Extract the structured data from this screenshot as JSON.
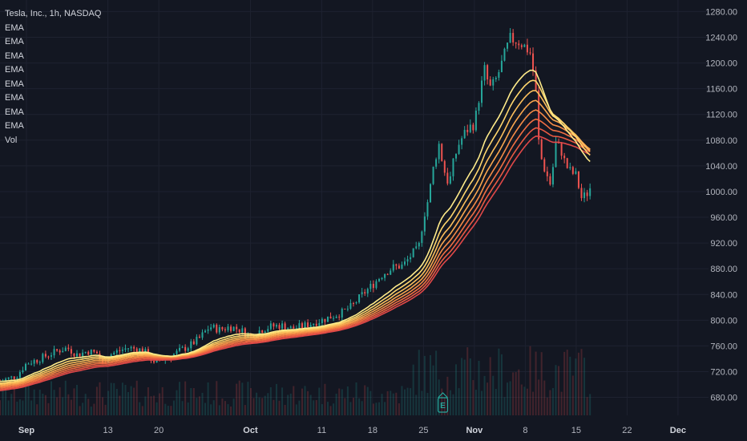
{
  "header": {
    "symbol_title": "Tesla, Inc., 1h, NASDAQ",
    "indicators": [
      "EMA",
      "EMA",
      "EMA",
      "EMA",
      "EMA",
      "EMA",
      "EMA",
      "EMA",
      "Vol"
    ]
  },
  "colors": {
    "background": "#131722",
    "grid": "#1e2230",
    "up": "#26a69a",
    "down": "#ef5350",
    "ema_ribbon": [
      "#ffeb8a",
      "#ffd76e",
      "#fcbf5c",
      "#f9a64f",
      "#f58b47",
      "#f06f43",
      "#e85a43",
      "#e04848"
    ],
    "earnings_marker": "#26a69a"
  },
  "earnings_marker": {
    "label": "E"
  },
  "chart_data": {
    "type": "candlestick",
    "title": "Tesla, Inc., 1h, NASDAQ",
    "price_axis": {
      "ticks": [
        680,
        720,
        760,
        800,
        840,
        880,
        920,
        960,
        1000,
        1040,
        1080,
        1120,
        1160,
        1200,
        1240,
        1280
      ],
      "tick_labels": [
        "680.00",
        "720.00",
        "760.00",
        "800.00",
        "840.00",
        "880.00",
        "920.00",
        "960.00",
        "1000.00",
        "1040.00",
        "1080.00",
        "1120.00",
        "1160.00",
        "1200.00",
        "1240.00",
        "1280.00"
      ],
      "ylim": [
        652,
        1298
      ]
    },
    "time_axis": {
      "labels": [
        {
          "text": "Sep",
          "bold": true,
          "t": 0
        },
        {
          "text": "13",
          "bold": false,
          "t": 8
        },
        {
          "text": "20",
          "bold": false,
          "t": 13
        },
        {
          "text": "Oct",
          "bold": true,
          "t": 22
        },
        {
          "text": "11",
          "bold": false,
          "t": 29
        },
        {
          "text": "18",
          "bold": false,
          "t": 34
        },
        {
          "text": "25",
          "bold": false,
          "t": 39
        },
        {
          "text": "Nov",
          "bold": true,
          "t": 44
        },
        {
          "text": "8",
          "bold": false,
          "t": 49
        },
        {
          "text": "15",
          "bold": false,
          "t": 54
        },
        {
          "text": "22",
          "bold": false,
          "t": 59
        },
        {
          "text": "Dec",
          "bold": true,
          "t": 64
        }
      ],
      "xlim": [
        -2.6,
        67
      ]
    },
    "price_path": [
      {
        "t": -2.6,
        "p": 705
      },
      {
        "t": -1,
        "p": 713
      },
      {
        "t": 0,
        "p": 733
      },
      {
        "t": 1,
        "p": 738
      },
      {
        "t": 2,
        "p": 745
      },
      {
        "t": 3,
        "p": 752
      },
      {
        "t": 4,
        "p": 757
      },
      {
        "t": 5,
        "p": 746
      },
      {
        "t": 6,
        "p": 752
      },
      {
        "t": 7,
        "p": 748
      },
      {
        "t": 7.5,
        "p": 730
      },
      {
        "t": 8,
        "p": 745
      },
      {
        "t": 9,
        "p": 752
      },
      {
        "t": 10,
        "p": 757
      },
      {
        "t": 11,
        "p": 755
      },
      {
        "t": 12,
        "p": 747
      },
      {
        "t": 12.5,
        "p": 730
      },
      {
        "t": 13,
        "p": 738
      },
      {
        "t": 14,
        "p": 742
      },
      {
        "t": 15,
        "p": 752
      },
      {
        "t": 16,
        "p": 760
      },
      {
        "t": 17,
        "p": 772
      },
      {
        "t": 18,
        "p": 790
      },
      {
        "t": 19,
        "p": 785
      },
      {
        "t": 20,
        "p": 790
      },
      {
        "t": 21,
        "p": 785
      },
      {
        "t": 22,
        "p": 775
      },
      {
        "t": 23,
        "p": 785
      },
      {
        "t": 24,
        "p": 790
      },
      {
        "t": 25,
        "p": 792
      },
      {
        "t": 26,
        "p": 787
      },
      {
        "t": 27,
        "p": 790
      },
      {
        "t": 28,
        "p": 795
      },
      {
        "t": 29,
        "p": 800
      },
      {
        "t": 30,
        "p": 806
      },
      {
        "t": 31,
        "p": 812
      },
      {
        "t": 32,
        "p": 822
      },
      {
        "t": 33,
        "p": 840
      },
      {
        "t": 34,
        "p": 855
      },
      {
        "t": 35,
        "p": 872
      },
      {
        "t": 36,
        "p": 882
      },
      {
        "t": 37,
        "p": 885
      },
      {
        "t": 38,
        "p": 905
      },
      {
        "t": 38.5,
        "p": 910
      },
      {
        "t": 39,
        "p": 960
      },
      {
        "t": 39.5,
        "p": 990
      },
      {
        "t": 40,
        "p": 1040
      },
      {
        "t": 40.5,
        "p": 1075
      },
      {
        "t": 41,
        "p": 1035
      },
      {
        "t": 41.5,
        "p": 1010
      },
      {
        "t": 42,
        "p": 1050
      },
      {
        "t": 42.5,
        "p": 1075
      },
      {
        "t": 43,
        "p": 1090
      },
      {
        "t": 43.5,
        "p": 1100
      },
      {
        "t": 44,
        "p": 1105
      },
      {
        "t": 44.5,
        "p": 1150
      },
      {
        "t": 45,
        "p": 1190
      },
      {
        "t": 45.5,
        "p": 1160
      },
      {
        "t": 46,
        "p": 1170
      },
      {
        "t": 46.5,
        "p": 1190
      },
      {
        "t": 47,
        "p": 1215
      },
      {
        "t": 47.5,
        "p": 1238
      },
      {
        "t": 48,
        "p": 1235
      },
      {
        "t": 48.5,
        "p": 1232
      },
      {
        "t": 49,
        "p": 1225
      },
      {
        "t": 49.5,
        "p": 1215
      },
      {
        "t": 50,
        "p": 1165
      },
      {
        "t": 50.3,
        "p": 1080
      },
      {
        "t": 50.6,
        "p": 1050
      },
      {
        "t": 51,
        "p": 1030
      },
      {
        "t": 51.5,
        "p": 1010
      },
      {
        "t": 52,
        "p": 1075
      },
      {
        "t": 52.5,
        "p": 1065
      },
      {
        "t": 53,
        "p": 1040
      },
      {
        "t": 53.5,
        "p": 1030
      },
      {
        "t": 54,
        "p": 1025
      },
      {
        "t": 54.5,
        "p": 990
      },
      {
        "t": 55,
        "p": 995
      },
      {
        "t": 55.5,
        "p": 1010
      }
    ],
    "ema_offsets_start": [
      0,
      3,
      5,
      7,
      9,
      11,
      13,
      15
    ],
    "volume_max_fraction": 0.12
  }
}
